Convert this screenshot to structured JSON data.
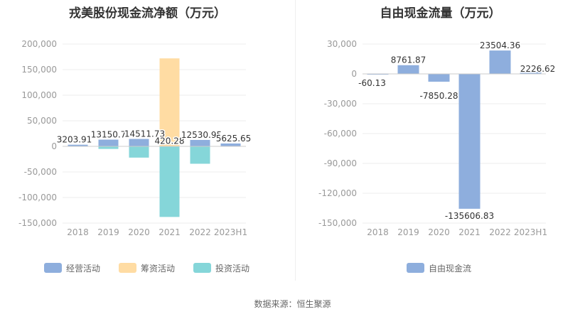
{
  "source_text": "数据来源：恒生聚源",
  "colors": {
    "operating": "#8eaedd",
    "financing": "#ffdca3",
    "investing": "#85d6d9",
    "fcf": "#8eaedd",
    "axis": "#999999",
    "grid": "#eeeeee"
  },
  "chart_data": [
    {
      "type": "bar",
      "title": "戎美股份现金流净额（万元）",
      "categories": [
        "2018",
        "2019",
        "2020",
        "2021",
        "2022",
        "2023H1"
      ],
      "ylim": [
        -150000,
        200000
      ],
      "yticks": [
        -150000,
        -100000,
        -50000,
        0,
        50000,
        100000,
        150000,
        200000
      ],
      "ytick_labels": [
        "-150,000",
        "-100,000",
        "-50,000",
        "0",
        "50,000",
        "100,000",
        "150,000",
        "200,000"
      ],
      "grid": true,
      "legend_position": "bottom",
      "series": [
        {
          "name": "经营活动",
          "color": "#8eaedd",
          "values": [
            3203.91,
            13150.7,
            14511.73,
            420.28,
            12530.95,
            5625.65
          ]
        },
        {
          "name": "筹资活动",
          "color": "#ffdca3",
          "values": [
            0,
            0,
            0,
            172000,
            -3000,
            0
          ]
        },
        {
          "name": "投资活动",
          "color": "#85d6d9",
          "values": [
            0,
            -5000,
            -22000,
            -138000,
            -34000,
            0
          ]
        }
      ],
      "data_labels": [
        "3203.91",
        "13150.7",
        "14511.73",
        "420.28",
        "12530.95",
        "5625.65"
      ]
    },
    {
      "type": "bar",
      "title": "自由现金流量（万元）",
      "categories": [
        "2018",
        "2019",
        "2020",
        "2021",
        "2022",
        "2023H1"
      ],
      "ylim": [
        -150000,
        30000
      ],
      "yticks": [
        -150000,
        -120000,
        -90000,
        -60000,
        -30000,
        0,
        30000
      ],
      "ytick_labels": [
        "-150,000",
        "-120,000",
        "-90,000",
        "-60,000",
        "-30,000",
        "0",
        "30,000"
      ],
      "grid": true,
      "legend_position": "bottom",
      "series": [
        {
          "name": "自由现金流",
          "color": "#8eaedd",
          "values": [
            -60.13,
            8761.87,
            -7850.28,
            -135606.83,
            23504.36,
            2226.62
          ]
        }
      ],
      "data_labels": [
        "-60.13",
        "8761.87",
        "-7850.28",
        "-135606.83",
        "23504.36",
        "2226.62"
      ]
    }
  ]
}
